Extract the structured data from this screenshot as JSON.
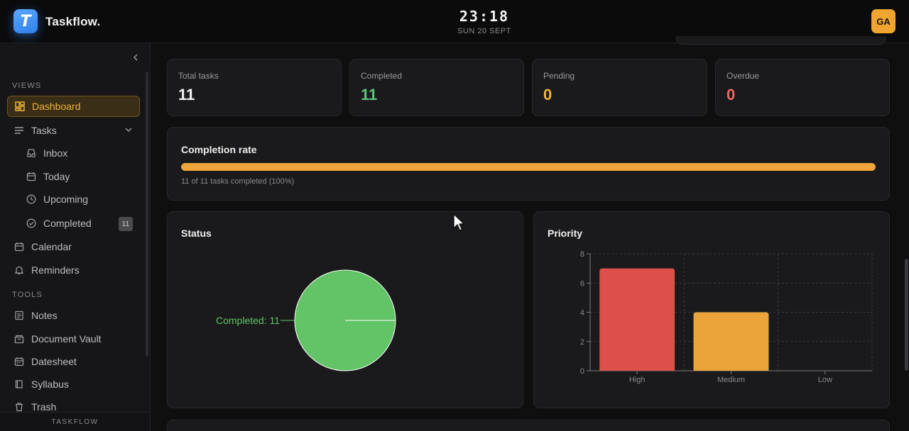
{
  "app": {
    "brand": "Taskflow.",
    "logo_letter": "T",
    "clock": "23:18",
    "date": "SUN 20 SEPT",
    "avatar_initials": "GA"
  },
  "sidebar": {
    "views_label": "VIEWS",
    "tools_label": "TOOLS",
    "footer": "TASKFLOW",
    "items": [
      {
        "label": "Dashboard",
        "icon": "dashboard-icon"
      },
      {
        "label": "Tasks",
        "icon": "list-icon"
      },
      {
        "label": "Inbox",
        "icon": "inbox-icon"
      },
      {
        "label": "Today",
        "icon": "today-icon"
      },
      {
        "label": "Upcoming",
        "icon": "clock-icon"
      },
      {
        "label": "Completed",
        "icon": "check-circle-icon",
        "badge": "11"
      },
      {
        "label": "Calendar",
        "icon": "calendar-icon"
      },
      {
        "label": "Reminders",
        "icon": "bell-icon"
      },
      {
        "label": "Notes",
        "icon": "notes-icon"
      },
      {
        "label": "Document Vault",
        "icon": "document-icon"
      },
      {
        "label": "Datesheet",
        "icon": "datesheet-icon"
      },
      {
        "label": "Syllabus",
        "icon": "book-icon"
      },
      {
        "label": "Trash",
        "icon": "trash-icon"
      }
    ]
  },
  "stats": [
    {
      "label": "Total tasks",
      "value": "11",
      "color": "#f2f2f2"
    },
    {
      "label": "Completed",
      "value": "11",
      "color": "#5ec27a"
    },
    {
      "label": "Pending",
      "value": "0",
      "color": "#f0b33f"
    },
    {
      "label": "Overdue",
      "value": "0",
      "color": "#e86a6a"
    }
  ],
  "completion": {
    "title": "Completion rate",
    "rate": 1.0,
    "note": "11 of 11 tasks completed (100%)"
  },
  "chart_data": [
    {
      "type": "pie",
      "title": "Status",
      "slices": [
        {
          "label": "Completed",
          "value": 11,
          "color": "#62c466"
        }
      ],
      "data_label": "Completed: 11"
    },
    {
      "type": "bar",
      "title": "Priority",
      "categories": [
        "High",
        "Medium",
        "Low"
      ],
      "values": [
        7,
        4,
        0
      ],
      "colors": [
        "#dd4f4a",
        "#eaa43a",
        "#5a9be8"
      ],
      "yticks": [
        0,
        2,
        4,
        6,
        8
      ],
      "ylim": [
        0,
        8
      ],
      "grid": true
    }
  ]
}
